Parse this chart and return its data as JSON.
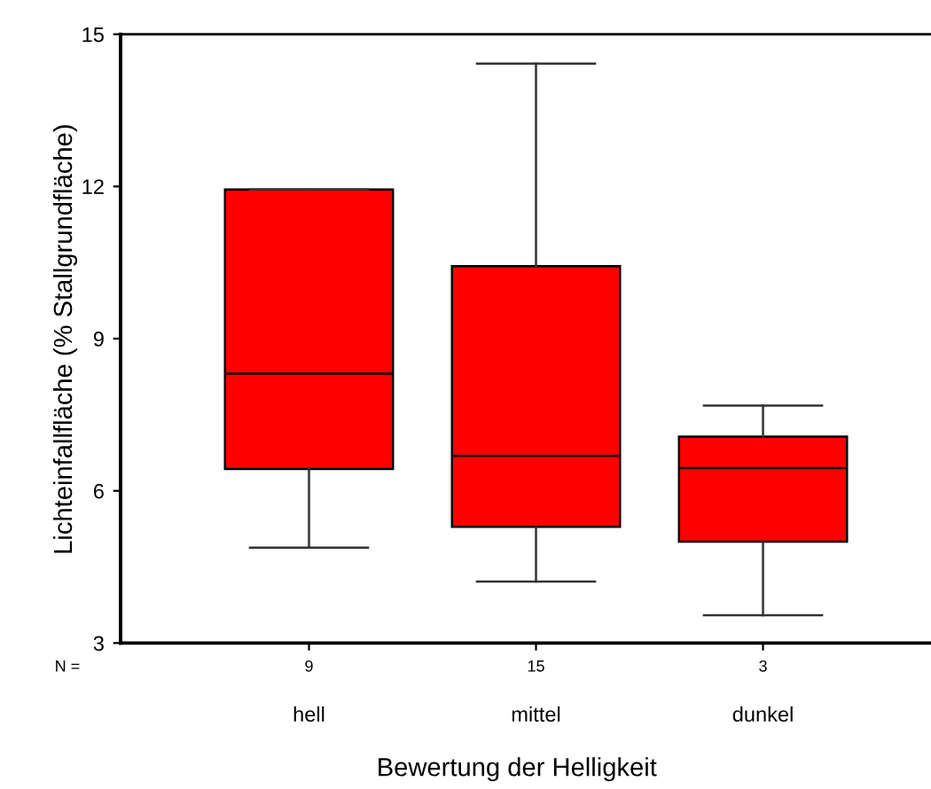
{
  "chart_data": {
    "type": "box",
    "xlabel": "Bewertung der Helligkeit",
    "ylabel": "Lichteinfallfläche (% Stallgrundfläche)",
    "categories": [
      "hell",
      "mittel",
      "dunkel"
    ],
    "boxes": [
      {
        "low": 4.88,
        "q1": 6.43,
        "median": 8.31,
        "q3": 11.94,
        "high": 11.94
      },
      {
        "low": 4.21,
        "q1": 5.29,
        "median": 6.69,
        "q3": 10.43,
        "high": 14.42
      },
      {
        "low": 3.55,
        "q1": 5.0,
        "median": 6.45,
        "q3": 7.07,
        "high": 7.68
      }
    ],
    "color": "#ff0000",
    "ylim": [
      3,
      15
    ],
    "yticks": [
      3,
      6,
      9,
      12,
      15
    ],
    "annotations": [
      "N =",
      "9",
      "15",
      "3"
    ]
  }
}
